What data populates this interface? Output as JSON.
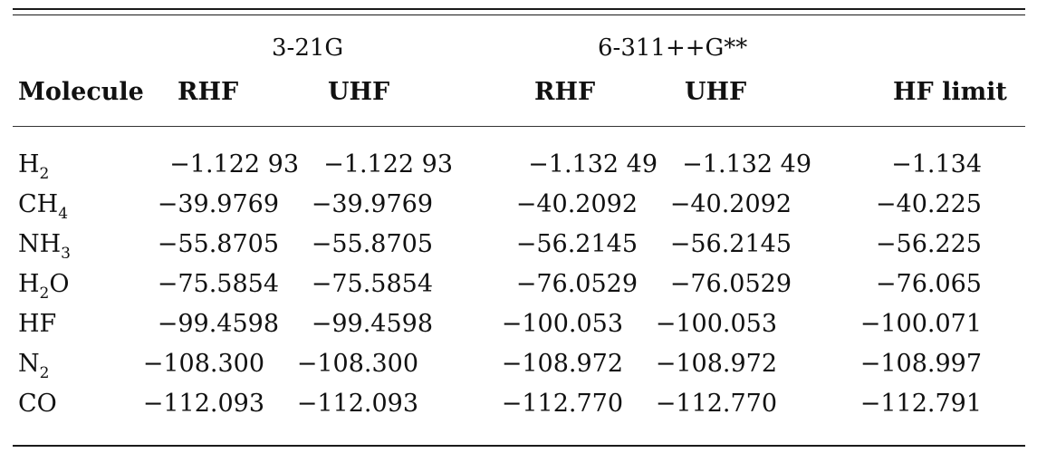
{
  "table": {
    "group_headers": {
      "basis1": "3-21G",
      "basis2": "6-311++G**"
    },
    "column_headers": {
      "molecule": "Molecule",
      "b1_rhf": "RHF",
      "b1_uhf": "UHF",
      "b2_rhf": "RHF",
      "b2_uhf": "UHF",
      "hf_limit": "HF limit"
    },
    "rows": [
      {
        "molecule": {
          "base": "H",
          "sub": "2",
          "tail": ""
        },
        "b1_rhf": "−1.122 93",
        "b1_uhf": "−1.122 93",
        "b2_rhf": "−1.132 49",
        "b2_uhf": "−1.132 49",
        "hf_limit": "−1.134"
      },
      {
        "molecule": {
          "base": "CH",
          "sub": "4",
          "tail": ""
        },
        "b1_rhf": "−39.9769",
        "b1_uhf": "−39.9769",
        "b2_rhf": "−40.2092",
        "b2_uhf": "−40.2092",
        "hf_limit": "−40.225"
      },
      {
        "molecule": {
          "base": "NH",
          "sub": "3",
          "tail": ""
        },
        "b1_rhf": "−55.8705",
        "b1_uhf": "−55.8705",
        "b2_rhf": "−56.2145",
        "b2_uhf": "−56.2145",
        "hf_limit": "−56.225"
      },
      {
        "molecule": {
          "base": "H",
          "sub": "2",
          "tail": "O"
        },
        "b1_rhf": "−75.5854",
        "b1_uhf": "−75.5854",
        "b2_rhf": "−76.0529",
        "b2_uhf": "−76.0529",
        "hf_limit": "−76.065"
      },
      {
        "molecule": {
          "base": "HF",
          "sub": "",
          "tail": ""
        },
        "b1_rhf": "−99.4598",
        "b1_uhf": "−99.4598",
        "b2_rhf": "−100.053",
        "b2_uhf": "−100.053",
        "hf_limit": "−100.071"
      },
      {
        "molecule": {
          "base": "N",
          "sub": "2",
          "tail": ""
        },
        "b1_rhf": "−108.300",
        "b1_uhf": "−108.300",
        "b2_rhf": "−108.972",
        "b2_uhf": "−108.972",
        "hf_limit": "−108.997"
      },
      {
        "molecule": {
          "base": "CO",
          "sub": "",
          "tail": ""
        },
        "b1_rhf": "−112.093",
        "b1_uhf": "−112.093",
        "b2_rhf": "−112.770",
        "b2_uhf": "−112.770",
        "hf_limit": "−112.791"
      }
    ]
  }
}
